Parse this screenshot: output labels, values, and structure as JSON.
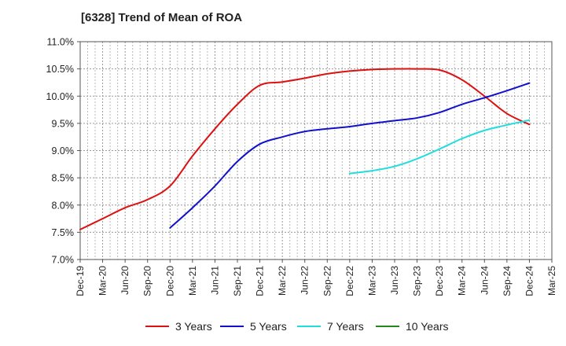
{
  "chart_data": {
    "type": "line",
    "title": "[6328]  Trend of Mean of ROA",
    "xlabel": "",
    "ylabel": "",
    "x_ticks": [
      "Dec-19",
      "Mar-20",
      "Jun-20",
      "Sep-20",
      "Dec-20",
      "Mar-21",
      "Jun-21",
      "Sep-21",
      "Dec-21",
      "Mar-22",
      "Jun-22",
      "Sep-22",
      "Dec-22",
      "Mar-23",
      "Jun-23",
      "Sep-23",
      "Dec-23",
      "Mar-24",
      "Jun-24",
      "Sep-24",
      "Dec-24",
      "Mar-25"
    ],
    "y_ticks": [
      "7.0%",
      "7.5%",
      "8.0%",
      "8.5%",
      "9.0%",
      "9.5%",
      "10.0%",
      "10.5%",
      "11.0%"
    ],
    "ylim": [
      7.0,
      11.0
    ],
    "y_unit": "%",
    "grid": true,
    "legend_position": "bottom",
    "series": [
      {
        "name": "3 Years",
        "color": "#dd1111",
        "x": [
          "Dec-19",
          "Mar-20",
          "Jun-20",
          "Sep-20",
          "Dec-20",
          "Mar-21",
          "Jun-21",
          "Sep-21",
          "Dec-21",
          "Mar-22",
          "Jun-22",
          "Sep-22",
          "Dec-22",
          "Mar-23",
          "Jun-23",
          "Sep-23",
          "Dec-23",
          "Mar-24",
          "Jun-24",
          "Sep-24",
          "Dec-24"
        ],
        "values": [
          7.55,
          7.75,
          7.95,
          8.1,
          8.35,
          8.9,
          9.4,
          9.85,
          10.2,
          10.26,
          10.33,
          10.41,
          10.46,
          10.49,
          10.5,
          10.5,
          10.48,
          10.3,
          10.0,
          9.68,
          9.48
        ]
      },
      {
        "name": "5 Years",
        "color": "#1111cc",
        "x": [
          "Dec-20",
          "Mar-21",
          "Jun-21",
          "Sep-21",
          "Dec-21",
          "Mar-22",
          "Jun-22",
          "Sep-22",
          "Dec-22",
          "Mar-23",
          "Jun-23",
          "Sep-23",
          "Dec-23",
          "Mar-24",
          "Jun-24",
          "Sep-24",
          "Dec-24"
        ],
        "values": [
          7.58,
          7.95,
          8.35,
          8.8,
          9.12,
          9.25,
          9.35,
          9.4,
          9.44,
          9.5,
          9.55,
          9.6,
          9.7,
          9.85,
          9.97,
          10.1,
          10.24
        ]
      },
      {
        "name": "7 Years",
        "color": "#22dddd",
        "x": [
          "Dec-22",
          "Mar-23",
          "Jun-23",
          "Sep-23",
          "Dec-23",
          "Mar-24",
          "Jun-24",
          "Sep-24",
          "Dec-24"
        ],
        "values": [
          8.58,
          8.63,
          8.71,
          8.85,
          9.03,
          9.22,
          9.37,
          9.47,
          9.56
        ]
      },
      {
        "name": "10 Years",
        "color": "#228822",
        "x": [],
        "values": []
      }
    ]
  }
}
